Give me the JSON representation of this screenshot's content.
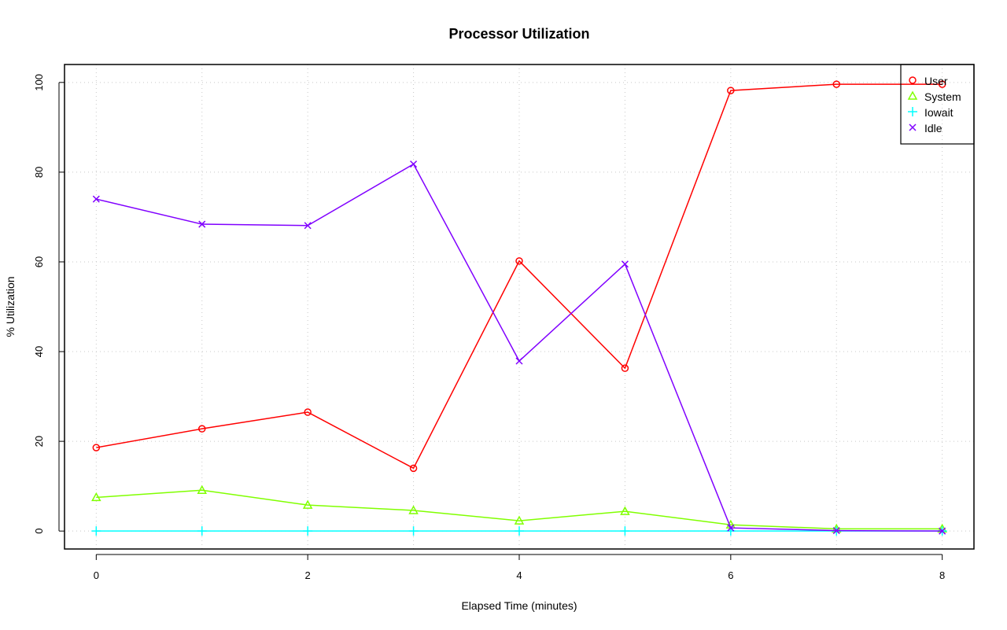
{
  "chart_data": {
    "type": "line",
    "title": "Processor Utilization",
    "xlabel": "Elapsed Time (minutes)",
    "ylabel": "% Utilization",
    "x": [
      0,
      1,
      2,
      3,
      4,
      5,
      6,
      7,
      8
    ],
    "xlim": [
      -0.3,
      8.3
    ],
    "ylim": [
      -4,
      104
    ],
    "xticks": [
      "0",
      "2",
      "4",
      "6",
      "8"
    ],
    "yticks": [
      "0",
      "20",
      "40",
      "60",
      "80",
      "100"
    ],
    "grid": true,
    "legend_position": "top-right",
    "series": [
      {
        "name": "User",
        "color": "#ff0000",
        "marker": "circle",
        "values": [
          18.6,
          22.8,
          26.5,
          14.0,
          60.2,
          36.3,
          98.2,
          99.6,
          99.6
        ]
      },
      {
        "name": "System",
        "color": "#80ff00",
        "marker": "triangle",
        "values": [
          7.5,
          9.1,
          5.8,
          4.6,
          2.3,
          4.4,
          1.4,
          0.5,
          0.5
        ]
      },
      {
        "name": "Iowait",
        "color": "#00ffff",
        "marker": "plus",
        "values": [
          0,
          0,
          0,
          0,
          0,
          0,
          0,
          0,
          0
        ]
      },
      {
        "name": "Idle",
        "color": "#8000ff",
        "marker": "cross",
        "values": [
          74.0,
          68.4,
          68.1,
          81.8,
          37.9,
          59.5,
          0.7,
          0.1,
          0.0
        ]
      }
    ]
  }
}
